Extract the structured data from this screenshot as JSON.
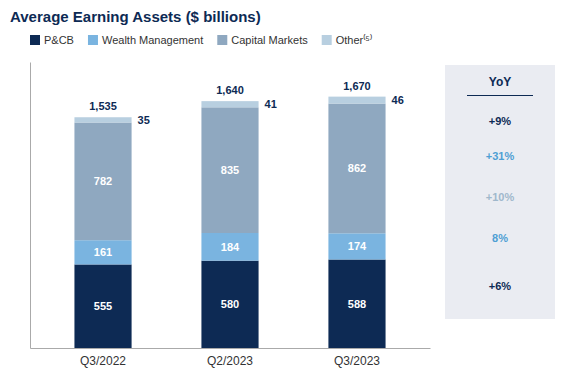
{
  "chart_data": {
    "type": "bar",
    "stacked": true,
    "title": "Average Earning Assets ($ billions)",
    "categories": [
      "Q3/2022",
      "Q2/2023",
      "Q3/2023"
    ],
    "series": [
      {
        "name": "P&CB",
        "color": "#0d2a54",
        "values": [
          555,
          580,
          588
        ]
      },
      {
        "name": "Wealth Management",
        "color": "#7ab4e0",
        "values": [
          161,
          184,
          174
        ]
      },
      {
        "name": "Capital Markets",
        "color": "#8fa8c0",
        "values": [
          782,
          835,
          862
        ]
      },
      {
        "name": "Other⁽⁵⁾",
        "color": "#b8cfe0",
        "values": [
          35,
          41,
          46
        ]
      }
    ],
    "ylim": [
      0,
      1900
    ],
    "tick_labels": "x",
    "grid": false,
    "legend": "top",
    "data_labels": true,
    "totals": {
      "values": [
        1535,
        1640,
        1670
      ],
      "value_labels": [
        "1,535",
        "1,640",
        "1,670"
      ]
    },
    "annotations": [
      {
        "text": "YoY",
        "color": "#0d2a54"
      },
      {
        "text": "+9%",
        "color": "#0d2a54"
      },
      {
        "text": "+31%",
        "color": "#4f9fd4"
      },
      {
        "text": "+10%",
        "color": "#a0b8cc"
      },
      {
        "text": "8%",
        "color": "#4f9fd4"
      },
      {
        "text": "+6%",
        "color": "#0d2a54"
      }
    ]
  }
}
